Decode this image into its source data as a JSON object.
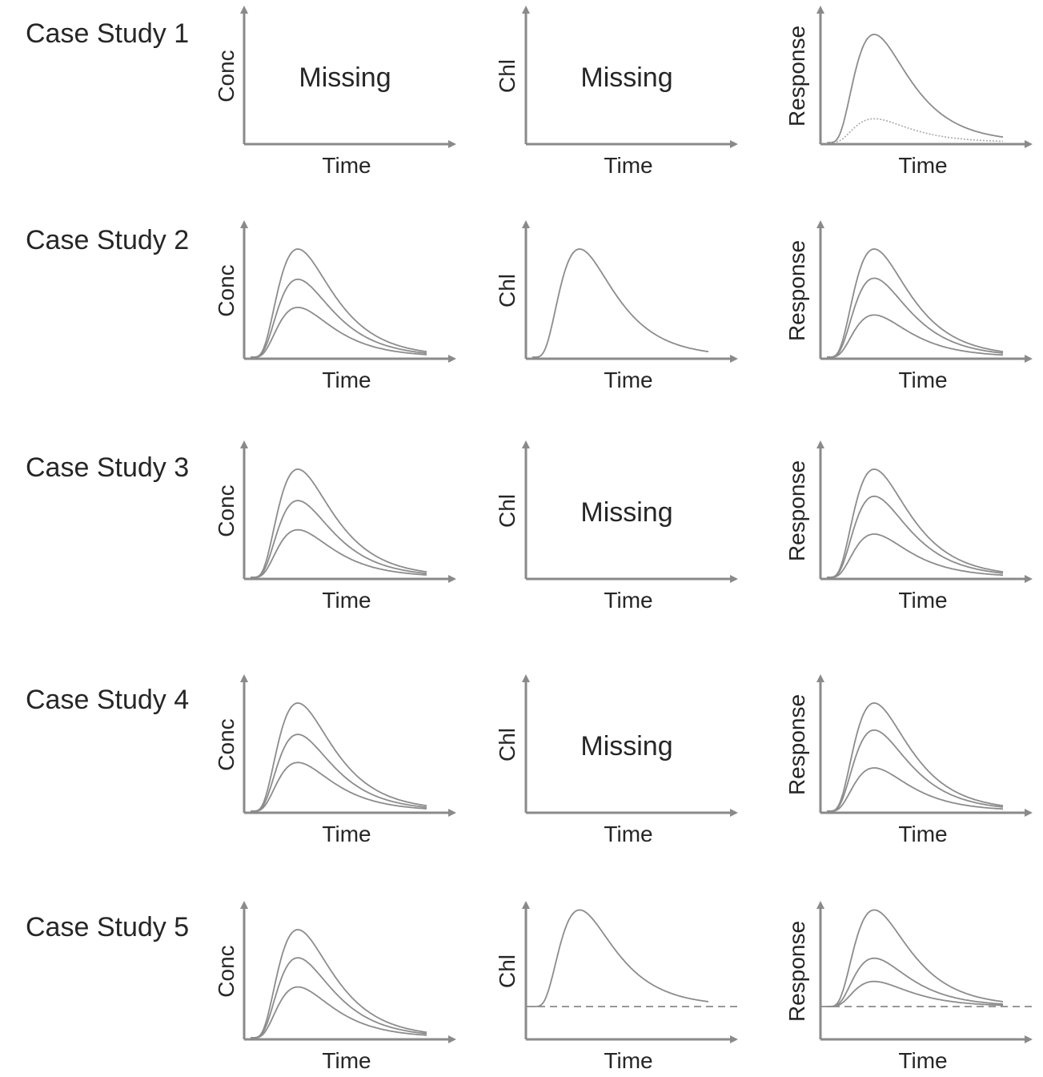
{
  "figure": {
    "rows": [
      {
        "case_label": "Case Study 1",
        "panels": [
          {
            "ylabel": "Conc",
            "xlabel": "Time",
            "missing_text": "Missing",
            "curves": [],
            "baseline": false
          },
          {
            "ylabel": "Chl",
            "xlabel": "Time",
            "missing_text": "Missing",
            "curves": [],
            "baseline": false
          },
          {
            "ylabel": "Response",
            "xlabel": "Time",
            "missing_text": null,
            "curves": [
              {
                "peak": 1.0,
                "style": "solid"
              },
              {
                "peak": 0.22,
                "style": "dotted"
              }
            ],
            "baseline": false
          }
        ]
      },
      {
        "case_label": "Case Study 2",
        "panels": [
          {
            "ylabel": "Conc",
            "xlabel": "Time",
            "missing_text": null,
            "curves": [
              {
                "peak": 1.0,
                "style": "solid"
              },
              {
                "peak": 0.72,
                "style": "solid"
              },
              {
                "peak": 0.46,
                "style": "solid"
              }
            ],
            "baseline": false
          },
          {
            "ylabel": "Chl",
            "xlabel": "Time",
            "missing_text": null,
            "curves": [
              {
                "peak": 1.0,
                "style": "solid"
              }
            ],
            "baseline": false
          },
          {
            "ylabel": "Response",
            "xlabel": "Time",
            "missing_text": null,
            "curves": [
              {
                "peak": 1.0,
                "style": "solid"
              },
              {
                "peak": 0.73,
                "style": "solid"
              },
              {
                "peak": 0.39,
                "style": "solid"
              }
            ],
            "baseline": false
          }
        ]
      },
      {
        "case_label": "Case Study 3",
        "panels": [
          {
            "ylabel": "Conc",
            "xlabel": "Time",
            "missing_text": null,
            "curves": [
              {
                "peak": 1.0,
                "style": "solid"
              },
              {
                "peak": 0.71,
                "style": "solid"
              },
              {
                "peak": 0.44,
                "style": "solid"
              }
            ],
            "baseline": false
          },
          {
            "ylabel": "Chl",
            "xlabel": "Time",
            "missing_text": "Missing",
            "curves": [],
            "baseline": false
          },
          {
            "ylabel": "Response",
            "xlabel": "Time",
            "missing_text": null,
            "curves": [
              {
                "peak": 1.0,
                "style": "solid"
              },
              {
                "peak": 0.75,
                "style": "solid"
              },
              {
                "peak": 0.4,
                "style": "solid"
              }
            ],
            "baseline": false
          }
        ]
      },
      {
        "case_label": "Case Study 4",
        "panels": [
          {
            "ylabel": "Conc",
            "xlabel": "Time",
            "missing_text": null,
            "curves": [
              {
                "peak": 1.0,
                "style": "solid"
              },
              {
                "peak": 0.71,
                "style": "solid"
              },
              {
                "peak": 0.45,
                "style": "solid"
              }
            ],
            "baseline": false
          },
          {
            "ylabel": "Chl",
            "xlabel": "Time",
            "missing_text": "Missing",
            "curves": [],
            "baseline": false
          },
          {
            "ylabel": "Response",
            "xlabel": "Time",
            "missing_text": null,
            "curves": [
              {
                "peak": 1.0,
                "style": "solid"
              },
              {
                "peak": 0.75,
                "style": "solid"
              },
              {
                "peak": 0.4,
                "style": "solid"
              }
            ],
            "baseline": false
          }
        ]
      },
      {
        "case_label": "Case Study 5",
        "panels": [
          {
            "ylabel": "Conc",
            "xlabel": "Time",
            "missing_text": null,
            "curves": [
              {
                "peak": 1.0,
                "style": "solid"
              },
              {
                "peak": 0.74,
                "style": "solid"
              },
              {
                "peak": 0.47,
                "style": "solid"
              }
            ],
            "baseline": false
          },
          {
            "ylabel": "Chl",
            "xlabel": "Time",
            "missing_text": null,
            "curves": [
              {
                "peak": 1.0,
                "style": "solid"
              }
            ],
            "baseline": true
          },
          {
            "ylabel": "Response",
            "xlabel": "Time",
            "missing_text": null,
            "curves": [
              {
                "peak": 1.0,
                "style": "solid"
              },
              {
                "peak": 0.5,
                "style": "solid"
              },
              {
                "peak": 0.26,
                "style": "solid"
              }
            ],
            "baseline": true
          }
        ]
      }
    ]
  }
}
